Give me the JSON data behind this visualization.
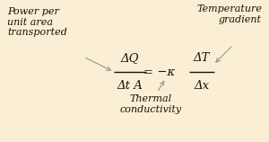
{
  "bg_color": "#faefd5",
  "equation_color": "#1a1208",
  "label_color": "#1a1208",
  "arrow_color": "#999988",
  "label_power": "Power per\nunit area\ntransported",
  "label_temp": "Temperature\ngradient",
  "label_thermal": "Thermal\nconductivity",
  "eq_num_left": "ΔQ",
  "eq_den_left": "Δt A",
  "eq_mid": "= −κ",
  "eq_num_right": "ΔT",
  "eq_den_right": "Δx",
  "fig_width": 3.0,
  "fig_height": 1.58,
  "dpi": 100,
  "fs_eq": 9.5,
  "fs_label": 8.0
}
